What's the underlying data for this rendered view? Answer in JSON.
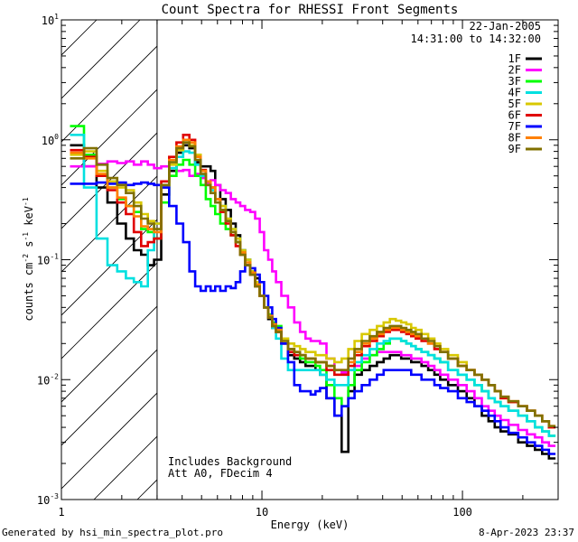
{
  "footer": {
    "generated_by": "Generated by hsi_min_spectra_plot.pro",
    "timestamp": "8-Apr-2023 23:37"
  },
  "chart_data": {
    "type": "line",
    "title": "Count Spectra for RHESSI Front Segments",
    "xlabel": "Energy (keV)",
    "ylabel": "counts cm^-2 s^-1 keV^-1",
    "xscale": "log",
    "yscale": "log",
    "xlim": [
      1,
      300
    ],
    "ylim": [
      0.001,
      10
    ],
    "x_ticks": [
      {
        "v": 1,
        "label": "1"
      },
      {
        "v": 10,
        "label": "10"
      },
      {
        "v": 100,
        "label": "100"
      }
    ],
    "y_ticks": [
      {
        "v": 0.001,
        "base": "10",
        "exp": "-3"
      },
      {
        "v": 0.01,
        "base": "10",
        "exp": "-2"
      },
      {
        "v": 0.1,
        "base": "10",
        "exp": "-1"
      },
      {
        "v": 1,
        "base": "10",
        "exp": "0"
      },
      {
        "v": 10,
        "base": "10",
        "exp": "1"
      }
    ],
    "date": "22-Jan-2005",
    "time_range": "14:31:00 to 14:32:00",
    "annotations": [
      "Includes Background",
      "Att A0, FDecim 4"
    ],
    "attenuated_region_max_kev": 3,
    "energy_kev": [
      1.2,
      1.4,
      1.6,
      1.8,
      2.0,
      2.2,
      2.4,
      2.6,
      2.8,
      3.0,
      3.3,
      3.6,
      3.9,
      4.2,
      4.5,
      4.8,
      5.1,
      5.4,
      5.7,
      6.0,
      6.4,
      6.8,
      7.2,
      7.6,
      8.0,
      8.5,
      9.0,
      9.5,
      10,
      10.5,
      11,
      11.5,
      12,
      13,
      14,
      15,
      16,
      17,
      18,
      19,
      20,
      22,
      24,
      26,
      28,
      30,
      33,
      36,
      39,
      42,
      45,
      48,
      51,
      54,
      57,
      60,
      65,
      70,
      75,
      80,
      90,
      100,
      110,
      120,
      130,
      140,
      150,
      160,
      180,
      200,
      220,
      240,
      260,
      280
    ],
    "series": [
      {
        "name": "1F",
        "color": "#000000",
        "values": [
          0.9,
          0.6,
          0.4,
          0.3,
          0.2,
          0.15,
          0.12,
          0.11,
          0.09,
          0.1,
          0.35,
          0.55,
          0.78,
          0.9,
          0.85,
          0.65,
          0.6,
          0.6,
          0.55,
          0.42,
          0.32,
          0.26,
          0.2,
          0.16,
          0.12,
          0.1,
          0.08,
          0.07,
          0.05,
          0.04,
          0.032,
          0.027,
          0.025,
          0.02,
          0.016,
          0.015,
          0.014,
          0.013,
          0.013,
          0.012,
          0.011,
          0.007,
          0.005,
          0.0025,
          0.008,
          0.011,
          0.012,
          0.013,
          0.014,
          0.015,
          0.016,
          0.016,
          0.015,
          0.015,
          0.014,
          0.014,
          0.013,
          0.012,
          0.011,
          0.01,
          0.009,
          0.008,
          0.007,
          0.006,
          0.005,
          0.0045,
          0.004,
          0.0037,
          0.0035,
          0.003,
          0.0028,
          0.0026,
          0.0024,
          0.0022
        ]
      },
      {
        "name": "2F",
        "color": "#ff00ff",
        "values": [
          0.6,
          0.6,
          0.63,
          0.66,
          0.64,
          0.66,
          0.62,
          0.66,
          0.62,
          0.58,
          0.6,
          0.58,
          0.55,
          0.56,
          0.5,
          0.52,
          0.48,
          0.44,
          0.46,
          0.42,
          0.38,
          0.36,
          0.32,
          0.3,
          0.28,
          0.26,
          0.25,
          0.22,
          0.17,
          0.12,
          0.1,
          0.08,
          0.065,
          0.05,
          0.04,
          0.03,
          0.025,
          0.022,
          0.021,
          0.021,
          0.02,
          0.015,
          0.012,
          0.0115,
          0.012,
          0.013,
          0.015,
          0.016,
          0.017,
          0.017,
          0.017,
          0.017,
          0.016,
          0.016,
          0.015,
          0.015,
          0.014,
          0.013,
          0.012,
          0.011,
          0.01,
          0.009,
          0.008,
          0.007,
          0.006,
          0.0055,
          0.005,
          0.0046,
          0.0042,
          0.0038,
          0.0035,
          0.0033,
          0.003,
          0.0028
        ]
      },
      {
        "name": "3F",
        "color": "#00ff00",
        "values": [
          1.3,
          0.75,
          0.5,
          0.4,
          0.32,
          0.28,
          0.25,
          0.18,
          0.17,
          0.15,
          0.3,
          0.5,
          0.62,
          0.68,
          0.62,
          0.5,
          0.42,
          0.32,
          0.28,
          0.24,
          0.2,
          0.18,
          0.16,
          0.14,
          0.11,
          0.09,
          0.075,
          0.06,
          0.05,
          0.04,
          0.035,
          0.03,
          0.028,
          0.022,
          0.018,
          0.016,
          0.015,
          0.014,
          0.014,
          0.013,
          0.012,
          0.009,
          0.007,
          0.006,
          0.009,
          0.012,
          0.014,
          0.016,
          0.018,
          0.02,
          0.022,
          0.022,
          0.021,
          0.02,
          0.019,
          0.018,
          0.017,
          0.016,
          0.015,
          0.014,
          0.012,
          0.011,
          0.01,
          0.009,
          0.008,
          0.007,
          0.0065,
          0.006,
          0.0055,
          0.005,
          0.0045,
          0.004,
          0.0037,
          0.0034
        ]
      },
      {
        "name": "4F",
        "color": "#00e0e0",
        "values": [
          1.1,
          0.4,
          0.15,
          0.09,
          0.08,
          0.07,
          0.065,
          0.06,
          0.12,
          0.2,
          0.4,
          0.58,
          0.72,
          0.8,
          0.78,
          0.62,
          0.5,
          0.42,
          0.38,
          0.32,
          0.28,
          0.22,
          0.18,
          0.15,
          0.12,
          0.1,
          0.08,
          0.065,
          0.05,
          0.04,
          0.033,
          0.027,
          0.022,
          0.015,
          0.012,
          0.012,
          0.012,
          0.012,
          0.012,
          0.012,
          0.011,
          0.01,
          0.009,
          0.009,
          0.012,
          0.014,
          0.016,
          0.018,
          0.02,
          0.021,
          0.022,
          0.022,
          0.021,
          0.02,
          0.019,
          0.018,
          0.017,
          0.016,
          0.015,
          0.014,
          0.012,
          0.011,
          0.01,
          0.009,
          0.008,
          0.007,
          0.0065,
          0.006,
          0.0055,
          0.005,
          0.0045,
          0.004,
          0.0037,
          0.0034
        ]
      },
      {
        "name": "5F",
        "color": "#d8c800",
        "values": [
          0.75,
          0.8,
          0.55,
          0.45,
          0.4,
          0.38,
          0.3,
          0.24,
          0.21,
          0.2,
          0.4,
          0.62,
          0.82,
          0.95,
          0.9,
          0.75,
          0.55,
          0.45,
          0.4,
          0.32,
          0.28,
          0.22,
          0.18,
          0.15,
          0.12,
          0.1,
          0.08,
          0.065,
          0.05,
          0.04,
          0.033,
          0.028,
          0.025,
          0.022,
          0.02,
          0.019,
          0.018,
          0.017,
          0.017,
          0.016,
          0.016,
          0.015,
          0.014,
          0.015,
          0.018,
          0.021,
          0.024,
          0.026,
          0.028,
          0.03,
          0.032,
          0.031,
          0.03,
          0.029,
          0.027,
          0.026,
          0.024,
          0.022,
          0.02,
          0.018,
          0.016,
          0.014,
          0.012,
          0.011,
          0.01,
          0.009,
          0.008,
          0.007,
          0.0065,
          0.006,
          0.0055,
          0.005,
          0.0045,
          0.004
        ]
      },
      {
        "name": "6F",
        "color": "#e00000",
        "values": [
          0.82,
          0.72,
          0.5,
          0.38,
          0.3,
          0.24,
          0.17,
          0.13,
          0.14,
          0.15,
          0.45,
          0.72,
          0.95,
          1.1,
          1.0,
          0.72,
          0.56,
          0.45,
          0.4,
          0.32,
          0.25,
          0.2,
          0.16,
          0.13,
          0.11,
          0.09,
          0.075,
          0.06,
          0.05,
          0.04,
          0.033,
          0.028,
          0.025,
          0.02,
          0.017,
          0.016,
          0.016,
          0.015,
          0.015,
          0.014,
          0.014,
          0.012,
          0.011,
          0.011,
          0.013,
          0.016,
          0.019,
          0.021,
          0.023,
          0.025,
          0.026,
          0.026,
          0.025,
          0.024,
          0.023,
          0.022,
          0.021,
          0.02,
          0.018,
          0.017,
          0.015,
          0.013,
          0.012,
          0.011,
          0.01,
          0.009,
          0.008,
          0.007,
          0.0065,
          0.006,
          0.0055,
          0.005,
          0.0045,
          0.004
        ]
      },
      {
        "name": "7F",
        "color": "#0000ff",
        "values": [
          0.43,
          0.43,
          0.44,
          0.43,
          0.44,
          0.42,
          0.43,
          0.44,
          0.43,
          0.42,
          0.4,
          0.28,
          0.2,
          0.14,
          0.08,
          0.06,
          0.055,
          0.06,
          0.055,
          0.06,
          0.055,
          0.06,
          0.058,
          0.065,
          0.08,
          0.09,
          0.085,
          0.075,
          0.065,
          0.05,
          0.04,
          0.032,
          0.027,
          0.02,
          0.014,
          0.009,
          0.008,
          0.008,
          0.0075,
          0.008,
          0.0085,
          0.007,
          0.005,
          0.006,
          0.007,
          0.008,
          0.009,
          0.01,
          0.011,
          0.012,
          0.012,
          0.012,
          0.012,
          0.012,
          0.011,
          0.011,
          0.01,
          0.01,
          0.009,
          0.0085,
          0.008,
          0.007,
          0.0065,
          0.006,
          0.0055,
          0.005,
          0.0045,
          0.004,
          0.0036,
          0.0033,
          0.003,
          0.0028,
          0.0026,
          0.0024
        ]
      },
      {
        "name": "8F",
        "color": "#ff8000",
        "values": [
          0.78,
          0.7,
          0.52,
          0.4,
          0.33,
          0.28,
          0.23,
          0.19,
          0.18,
          0.17,
          0.42,
          0.68,
          0.88,
          1.0,
          0.95,
          0.72,
          0.55,
          0.45,
          0.4,
          0.32,
          0.26,
          0.21,
          0.17,
          0.14,
          0.115,
          0.095,
          0.078,
          0.062,
          0.05,
          0.04,
          0.034,
          0.029,
          0.026,
          0.021,
          0.018,
          0.017,
          0.016,
          0.015,
          0.015,
          0.014,
          0.014,
          0.013,
          0.012,
          0.012,
          0.014,
          0.017,
          0.02,
          0.022,
          0.024,
          0.026,
          0.027,
          0.027,
          0.026,
          0.025,
          0.024,
          0.023,
          0.022,
          0.02,
          0.019,
          0.017,
          0.015,
          0.013,
          0.012,
          0.011,
          0.01,
          0.009,
          0.008,
          0.0072,
          0.0066,
          0.006,
          0.0055,
          0.005,
          0.0045,
          0.0041
        ]
      },
      {
        "name": "9F",
        "color": "#807000",
        "values": [
          0.7,
          0.85,
          0.62,
          0.48,
          0.42,
          0.36,
          0.28,
          0.22,
          0.2,
          0.18,
          0.42,
          0.65,
          0.85,
          0.95,
          0.88,
          0.68,
          0.52,
          0.42,
          0.36,
          0.3,
          0.26,
          0.21,
          0.17,
          0.14,
          0.11,
          0.09,
          0.075,
          0.06,
          0.05,
          0.04,
          0.033,
          0.028,
          0.025,
          0.021,
          0.018,
          0.017,
          0.016,
          0.015,
          0.015,
          0.014,
          0.014,
          0.013,
          0.012,
          0.012,
          0.015,
          0.018,
          0.021,
          0.023,
          0.025,
          0.027,
          0.028,
          0.028,
          0.027,
          0.026,
          0.025,
          0.024,
          0.022,
          0.021,
          0.019,
          0.017,
          0.015,
          0.013,
          0.012,
          0.011,
          0.01,
          0.009,
          0.008,
          0.0072,
          0.0066,
          0.006,
          0.0055,
          0.005,
          0.0045,
          0.0041
        ]
      }
    ]
  }
}
